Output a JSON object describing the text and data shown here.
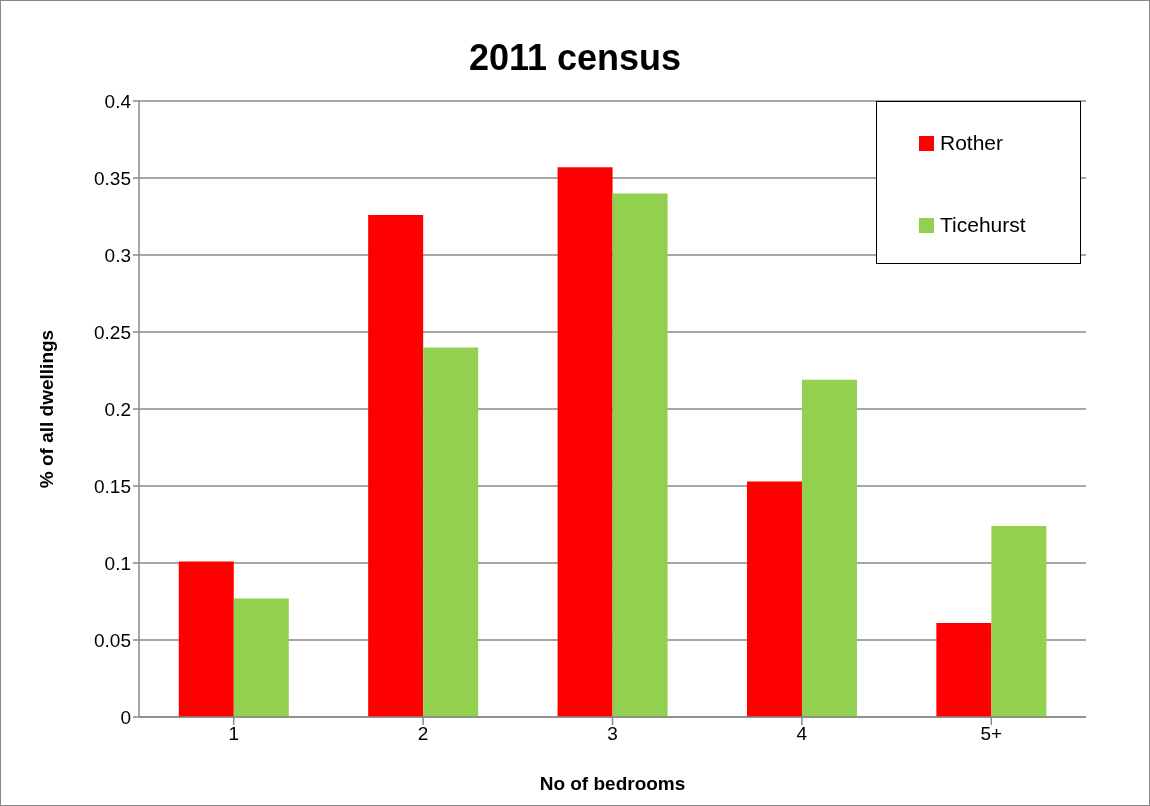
{
  "chart_data": {
    "type": "bar",
    "title": "2011 census",
    "xlabel": "No of bedrooms",
    "ylabel": "% of all dwellings",
    "categories": [
      "1",
      "2",
      "3",
      "4",
      "5+"
    ],
    "series": [
      {
        "name": "Rother",
        "color": "#ff0000",
        "values": [
          0.101,
          0.326,
          0.357,
          0.153,
          0.061
        ]
      },
      {
        "name": "Ticehurst",
        "color": "#92d050",
        "values": [
          0.077,
          0.24,
          0.34,
          0.219,
          0.124
        ]
      }
    ],
    "ylim": [
      0,
      0.4
    ],
    "yticks": [
      0,
      0.05,
      0.1,
      0.15,
      0.2,
      0.25,
      0.3,
      0.35,
      0.4
    ],
    "grid": "y",
    "legend": "top right"
  }
}
